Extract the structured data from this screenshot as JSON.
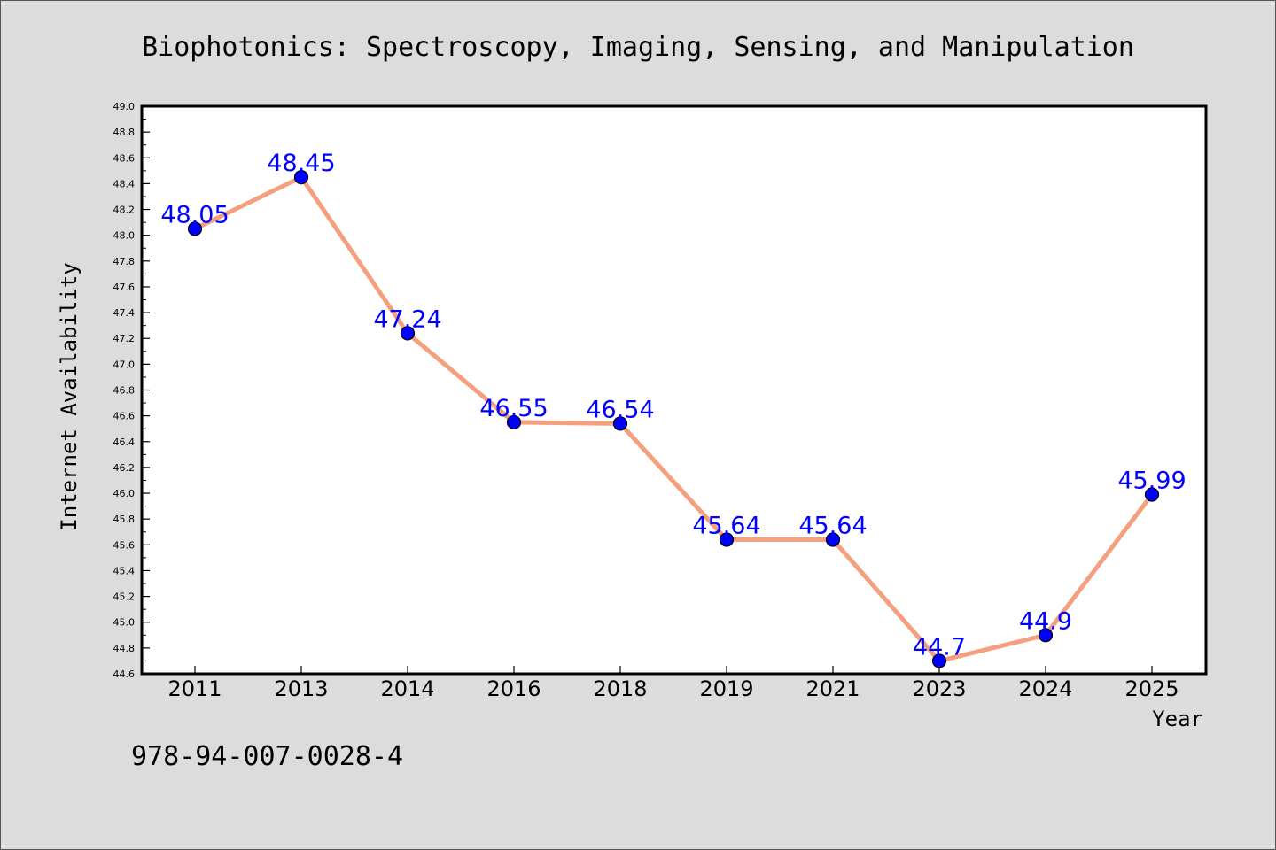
{
  "chart_data": {
    "type": "line",
    "title": "Biophotonics: Spectroscopy, Imaging, Sensing, and Manipulation",
    "xlabel": "Year",
    "ylabel": "Internet Availability",
    "categories": [
      "2011",
      "2013",
      "2014",
      "2016",
      "2018",
      "2019",
      "2021",
      "2023",
      "2024",
      "2025"
    ],
    "values": [
      48.05,
      48.45,
      47.24,
      46.55,
      46.54,
      45.64,
      45.64,
      44.7,
      44.9,
      45.99
    ],
    "value_labels": [
      "48.05",
      "48.45",
      "47.24",
      "46.55",
      "46.54",
      "45.64",
      "45.64",
      "44.7",
      "44.9",
      "45.99"
    ],
    "ylim": [
      44.6,
      49.0
    ],
    "yticks": [
      "44.6",
      "44.8",
      "45.0",
      "45.2",
      "45.4",
      "45.6",
      "45.8",
      "46.0",
      "46.2",
      "46.4",
      "46.6",
      "46.8",
      "47.0",
      "47.2",
      "47.4",
      "47.6",
      "47.8",
      "48.0",
      "48.2",
      "48.4",
      "48.6",
      "48.8",
      "49.0"
    ],
    "grid": false,
    "colors": {
      "line": "#f4a07f",
      "marker": "#0000ff",
      "data_label": "#0000ff",
      "background": "#dcdcdc",
      "plot_background": "#ffffff"
    }
  },
  "footer_text": "978-94-007-0028-4"
}
